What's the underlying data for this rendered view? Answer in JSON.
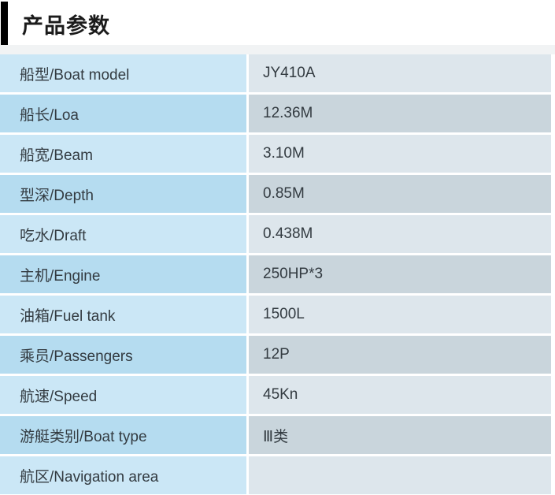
{
  "header": {
    "title": "产品参数"
  },
  "table": {
    "rows": [
      {
        "label": "船型/Boat model",
        "value": "JY410A"
      },
      {
        "label": "船长/Loa",
        "value": "12.36M"
      },
      {
        "label": "船宽/Beam",
        "value": "3.10M"
      },
      {
        "label": "型深/Depth",
        "value": "0.85M"
      },
      {
        "label": "吃水/Draft",
        "value": "0.438M"
      },
      {
        "label": "主机/Engine",
        "value": "250HP*3"
      },
      {
        "label": "油箱/Fuel tank",
        "value": "1500L"
      },
      {
        "label": "乘员/Passengers",
        "value": "12P"
      },
      {
        "label": "航速/Speed",
        "value": "45Kn"
      },
      {
        "label": "游艇类别/Boat type",
        "value": "Ⅲ类"
      },
      {
        "label": "航区/Navigation area",
        "value": ""
      }
    ]
  },
  "colors": {
    "label_cell_light": "#cbe7f6",
    "label_cell_dark": "#b5dcf0",
    "value_cell_light": "#dde6ec",
    "value_cell_dark": "#c9d5dc",
    "text": "#333b41",
    "accent_bar": "#000000"
  }
}
